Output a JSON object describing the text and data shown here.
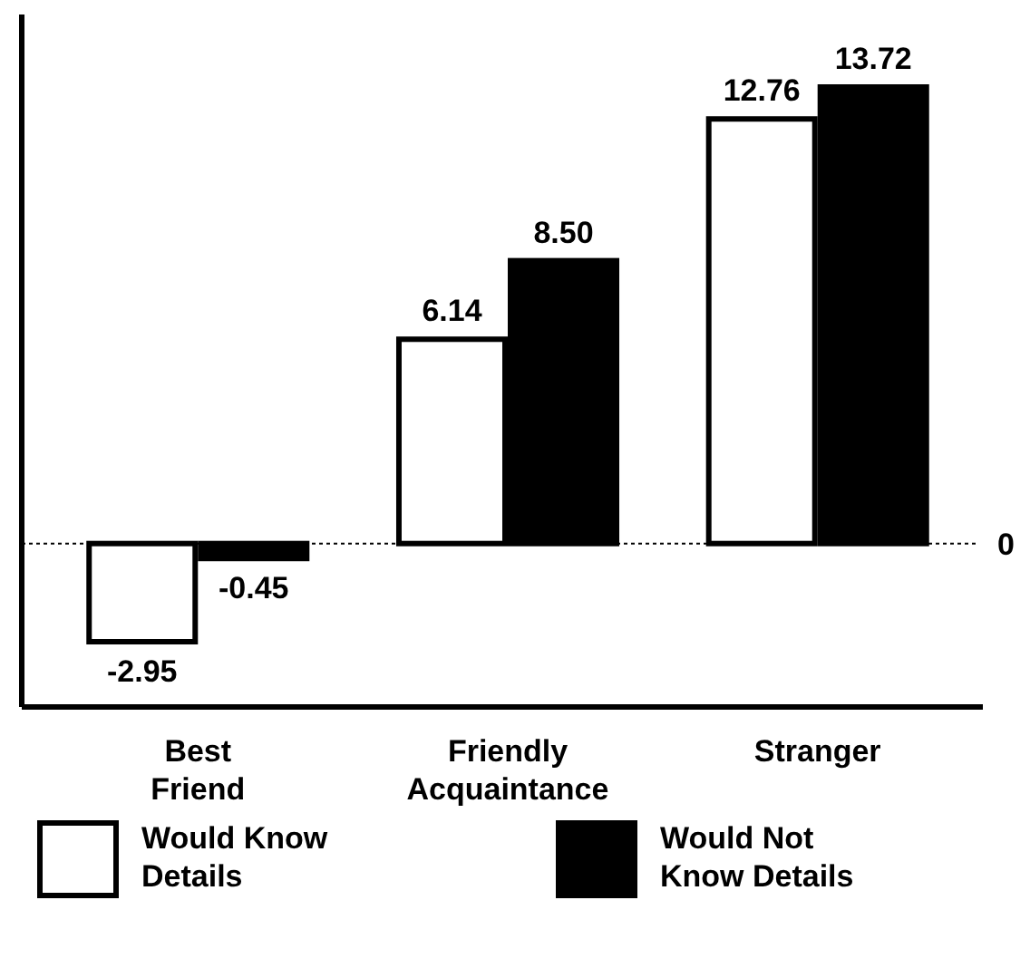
{
  "chart_data": {
    "type": "bar",
    "categories": [
      "Best Friend",
      "Friendly Acquaintance",
      "Stranger"
    ],
    "series": [
      {
        "name": "Would Know Details",
        "color": "#ffffff",
        "values": [
          -2.95,
          6.14,
          12.76
        ],
        "value_labels": [
          "-2.95",
          "6.14",
          "12.76"
        ]
      },
      {
        "name": "Would Not Know Details",
        "color": "#000000",
        "values": [
          -0.45,
          8.5,
          13.72
        ],
        "value_labels": [
          "-0.45",
          "8.50",
          "13.72"
        ]
      }
    ],
    "tick_labels": "x",
    "legend": "bottom",
    "ref_lines": [
      {
        "axis": "y",
        "value": 0,
        "label": "0",
        "line_style": "dotted"
      }
    ]
  }
}
